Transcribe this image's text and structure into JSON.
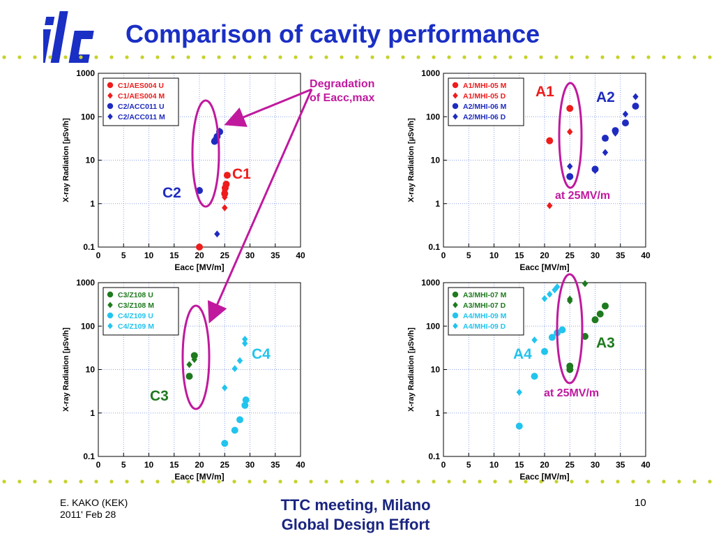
{
  "slide": {
    "title": "Comparison of cavity performance",
    "logo_text": "ilc",
    "footer_left_line1": "E. KAKO (KEK)",
    "footer_left_line2": "2011' Feb 28",
    "footer_center_line1": "TTC meeting, Milano",
    "footer_center_line2": "Global Design Effort",
    "page_number": "10"
  },
  "colors": {
    "title": "#1a2fc4",
    "red": "#ee1c1c",
    "blue": "#1f2bbf",
    "green": "#1e7a1e",
    "cyan": "#22c4ee",
    "magenta": "#c0199e",
    "dots": "#c6d22a"
  },
  "annotations": {
    "degradation_line1": "Degradation",
    "degradation_line2": "of Eacc,max",
    "c1": "C1",
    "c2": "C2",
    "c3": "C3",
    "c4": "C4",
    "a1": "A1",
    "a2": "A2",
    "a3": "A3",
    "a4": "A4",
    "at25_top": "at 25MV/m",
    "at25_bottom": "at 25MV/m"
  },
  "chart_data": [
    {
      "type": "scatter",
      "xlabel": "Eacc  [MV/m]",
      "ylabel": "X-ray Radiation  [µSv/h]",
      "xlim": [
        0,
        40
      ],
      "ylim": [
        0.1,
        1000
      ],
      "yscale": "log",
      "xticks": [
        "0",
        "5",
        "10",
        "15",
        "20",
        "25",
        "30",
        "35",
        "40"
      ],
      "yticks": [
        "0.1",
        "1",
        "10",
        "100",
        "1000"
      ],
      "grid": true,
      "legend": "top-left",
      "series": [
        {
          "name": "C1/AES004 U",
          "color": "#ee1c1c",
          "marker": "circle",
          "points": [
            [
              20,
              0.1
            ],
            [
              25,
              1.7
            ],
            [
              25.1,
              2.3
            ],
            [
              25.3,
              2.8
            ],
            [
              25.5,
              4.5
            ]
          ]
        },
        {
          "name": "C1/AES004 M",
          "color": "#ee1c1c",
          "marker": "diamond",
          "points": [
            [
              25,
              0.8
            ],
            [
              25,
              1.4
            ],
            [
              25,
              2.0
            ],
            [
              25.2,
              2.6
            ]
          ]
        },
        {
          "name": "C2/ACC011 U",
          "color": "#1f2bbf",
          "marker": "circle",
          "points": [
            [
              20,
              2.0
            ],
            [
              23,
              27
            ],
            [
              23.5,
              35
            ],
            [
              24,
              45
            ]
          ]
        },
        {
          "name": "C2/ACC011 M",
          "color": "#1f2bbf",
          "marker": "diamond",
          "points": [
            [
              23.5,
              0.2
            ],
            [
              23,
              30
            ],
            [
              24,
              47
            ]
          ]
        }
      ]
    },
    {
      "type": "scatter",
      "xlabel": "Eacc  [MV/m]",
      "ylabel": "X-ray Radiation  [µSv/h]",
      "xlim": [
        0,
        40
      ],
      "ylim": [
        0.1,
        1000
      ],
      "yscale": "log",
      "xticks": [
        "0",
        "5",
        "10",
        "15",
        "20",
        "25",
        "30",
        "35",
        "40"
      ],
      "yticks": [
        "0.1",
        "1",
        "10",
        "100",
        "1000"
      ],
      "grid": true,
      "legend": "top-left",
      "series": [
        {
          "name": "A1/MHI-05 M",
          "color": "#ee1c1c",
          "marker": "circle",
          "points": [
            [
              21,
              28
            ],
            [
              25,
              155
            ]
          ]
        },
        {
          "name": "A1/MHI-05 D",
          "color": "#ee1c1c",
          "marker": "diamond",
          "points": [
            [
              21,
              0.9
            ],
            [
              25,
              45
            ]
          ]
        },
        {
          "name": "A2/MHI-06 M",
          "color": "#1f2bbf",
          "marker": "circle",
          "points": [
            [
              25,
              4.2
            ],
            [
              30,
              6.2
            ],
            [
              32,
              32
            ],
            [
              34,
              48
            ],
            [
              36,
              72
            ],
            [
              38,
              175
            ]
          ]
        },
        {
          "name": "A2/MHI-06 D",
          "color": "#1f2bbf",
          "marker": "diamond",
          "points": [
            [
              25,
              7.2
            ],
            [
              30,
              5.8
            ],
            [
              32,
              15
            ],
            [
              34,
              42
            ],
            [
              36,
              115
            ],
            [
              38,
              290
            ]
          ]
        }
      ]
    },
    {
      "type": "scatter",
      "xlabel": "Eacc  [MV/m]",
      "ylabel": "X-ray Radiation  [µSv/h]",
      "xlim": [
        0,
        40
      ],
      "ylim": [
        0.1,
        1000
      ],
      "yscale": "log",
      "xticks": [
        "0",
        "5",
        "10",
        "15",
        "20",
        "25",
        "30",
        "35",
        "40"
      ],
      "yticks": [
        "0.1",
        "1",
        "10",
        "100",
        "1000"
      ],
      "grid": true,
      "legend": "top-left",
      "series": [
        {
          "name": "C3/Z108 U",
          "color": "#1e7a1e",
          "marker": "circle",
          "points": [
            [
              18,
              7
            ],
            [
              19,
              21
            ]
          ]
        },
        {
          "name": "C3/Z108 M",
          "color": "#1e7a1e",
          "marker": "diamond",
          "points": [
            [
              18,
              13
            ],
            [
              19,
              17
            ]
          ]
        },
        {
          "name": "C4/Z109 U",
          "color": "#22c4ee",
          "marker": "circle",
          "points": [
            [
              25,
              0.2
            ],
            [
              27,
              0.4
            ],
            [
              28,
              0.7
            ],
            [
              29,
              1.5
            ],
            [
              29.2,
              2.0
            ]
          ]
        },
        {
          "name": "C4/Z109 M",
          "color": "#22c4ee",
          "marker": "diamond",
          "points": [
            [
              25,
              3.8
            ],
            [
              27,
              10.5
            ],
            [
              28,
              16
            ],
            [
              29,
              40
            ],
            [
              29,
              50
            ]
          ]
        }
      ]
    },
    {
      "type": "scatter",
      "xlabel": "Eacc  [MV/m]",
      "ylabel": "X-ray Radiation  [µSv/h]",
      "xlim": [
        0,
        40
      ],
      "ylim": [
        0.1,
        1000
      ],
      "yscale": "log",
      "xticks": [
        "0",
        "5",
        "10",
        "15",
        "20",
        "25",
        "30",
        "35",
        "40"
      ],
      "yticks": [
        "0.1",
        "1",
        "10",
        "100",
        "1000"
      ],
      "grid": true,
      "legend": "top-left",
      "series": [
        {
          "name": "A3/MHI-07 M",
          "color": "#1e7a1e",
          "marker": "circle",
          "points": [
            [
              25,
              10
            ],
            [
              25,
              12
            ],
            [
              28,
              58
            ],
            [
              30,
              140
            ],
            [
              31,
              190
            ],
            [
              32,
              290
            ]
          ]
        },
        {
          "name": "A3/MHI-07 D",
          "color": "#1e7a1e",
          "marker": "diamond",
          "points": [
            [
              25,
              380
            ],
            [
              25,
              420
            ],
            [
              28,
              950
            ]
          ]
        },
        {
          "name": "A4/MHI-09 M",
          "color": "#22c4ee",
          "marker": "circle",
          "points": [
            [
              15,
              0.5
            ],
            [
              18,
              7
            ],
            [
              20,
              26
            ],
            [
              21.5,
              55
            ],
            [
              22.5,
              70
            ],
            [
              23.5,
              82
            ]
          ]
        },
        {
          "name": "A4/MHI-09 D",
          "color": "#22c4ee",
          "marker": "diamond",
          "points": [
            [
              15,
              3
            ],
            [
              18,
              48
            ],
            [
              20,
              430
            ],
            [
              21,
              540
            ],
            [
              22,
              680
            ],
            [
              22.5,
              800
            ]
          ]
        }
      ]
    }
  ]
}
